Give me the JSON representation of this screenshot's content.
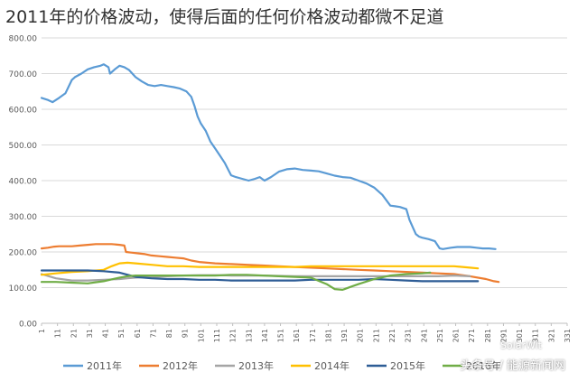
{
  "title": "2011年的价格波动，使得后面的任何价格波动都微不足道",
  "watermark": "头条号 / 能源新闻网",
  "watermark2": "SolarWit",
  "chart_data": {
    "type": "line",
    "title": "2011年的价格波动，使得后面的任何价格波动都微不足道",
    "xlabel": "",
    "ylabel": "",
    "ylim": [
      0,
      800
    ],
    "xlim": [
      1,
      331
    ],
    "yticks": [
      "0.00",
      "100.00",
      "200.00",
      "300.00",
      "400.00",
      "500.00",
      "600.00",
      "700.00",
      "800.00"
    ],
    "xticks": [
      1,
      11,
      21,
      31,
      41,
      51,
      61,
      71,
      81,
      91,
      101,
      111,
      121,
      131,
      141,
      151,
      161,
      171,
      181,
      191,
      201,
      211,
      221,
      231,
      241,
      251,
      261,
      271,
      281,
      291,
      301,
      311,
      321,
      331
    ],
    "grid": true,
    "legend_position": "bottom",
    "series": [
      {
        "name": "2011年",
        "color": "#5b9bd5",
        "x": [
          1,
          5,
          8,
          12,
          16,
          20,
          22,
          26,
          30,
          34,
          38,
          40,
          43,
          44,
          47,
          50,
          53,
          56,
          60,
          64,
          68,
          72,
          76,
          80,
          84,
          88,
          92,
          95,
          97,
          99,
          101,
          104,
          107,
          110,
          113,
          116,
          120,
          123,
          127,
          131,
          135,
          138,
          141,
          145,
          150,
          155,
          160,
          165,
          170,
          175,
          180,
          185,
          190,
          195,
          200,
          205,
          210,
          215,
          220,
          223,
          226,
          230,
          232,
          234,
          236,
          238,
          240,
          244,
          248,
          251,
          253,
          258,
          262,
          266,
          270,
          274,
          278,
          282,
          286
        ],
        "y": [
          632,
          626,
          620,
          632,
          645,
          682,
          690,
          700,
          712,
          718,
          722,
          726,
          718,
          700,
          712,
          722,
          718,
          710,
          690,
          678,
          668,
          665,
          668,
          665,
          662,
          658,
          650,
          635,
          610,
          580,
          560,
          540,
          510,
          490,
          470,
          450,
          415,
          410,
          405,
          400,
          405,
          410,
          400,
          410,
          425,
          432,
          434,
          430,
          428,
          426,
          420,
          414,
          410,
          408,
          400,
          392,
          380,
          360,
          330,
          328,
          326,
          320,
          290,
          270,
          250,
          243,
          240,
          236,
          230,
          210,
          208,
          212,
          214,
          214,
          214,
          212,
          210,
          210,
          208
        ]
      },
      {
        "name": "2012年",
        "color": "#ed7d31",
        "x": [
          1,
          5,
          9,
          12,
          16,
          20,
          25,
          30,
          35,
          40,
          45,
          50,
          53,
          54,
          58,
          62,
          66,
          70,
          75,
          80,
          85,
          90,
          95,
          100,
          110,
          120,
          130,
          140,
          150,
          160,
          170,
          180,
          190,
          200,
          210,
          220,
          230,
          240,
          250,
          260,
          270,
          280,
          285,
          288
        ],
        "y": [
          210,
          212,
          215,
          216,
          216,
          216,
          218,
          220,
          222,
          222,
          222,
          220,
          218,
          200,
          198,
          196,
          194,
          190,
          188,
          186,
          184,
          182,
          176,
          172,
          168,
          166,
          164,
          162,
          160,
          158,
          156,
          154,
          152,
          150,
          148,
          146,
          144,
          142,
          140,
          138,
          132,
          124,
          118,
          116
        ]
      },
      {
        "name": "2013年",
        "color": "#a5a5a5",
        "x": [
          1,
          10,
          20,
          30,
          40,
          50,
          55,
          60,
          70,
          80,
          90,
          100,
          110,
          120,
          130,
          140,
          150,
          160,
          170,
          180,
          190,
          200,
          210,
          220,
          230,
          240,
          250,
          260,
          270
        ],
        "y": [
          138,
          126,
          120,
          120,
          122,
          124,
          126,
          128,
          130,
          132,
          134,
          135,
          135,
          134,
          134,
          134,
          133,
          132,
          132,
          132,
          132,
          132,
          132,
          132,
          132,
          132,
          132,
          134,
          132
        ]
      },
      {
        "name": "2014年",
        "color": "#ffc000",
        "x": [
          1,
          10,
          20,
          30,
          40,
          45,
          50,
          55,
          60,
          70,
          80,
          90,
          100,
          110,
          120,
          130,
          140,
          150,
          160,
          170,
          180,
          190,
          200,
          210,
          220,
          230,
          240,
          250,
          260,
          270,
          275
        ],
        "y": [
          136,
          140,
          144,
          146,
          150,
          160,
          168,
          170,
          168,
          164,
          160,
          160,
          158,
          158,
          158,
          158,
          158,
          158,
          158,
          160,
          160,
          160,
          160,
          160,
          160,
          160,
          160,
          160,
          160,
          156,
          154
        ]
      },
      {
        "name": "2015年",
        "color": "#2e5d96",
        "x": [
          1,
          10,
          20,
          30,
          40,
          50,
          60,
          70,
          80,
          90,
          100,
          110,
          120,
          130,
          140,
          150,
          160,
          170,
          180,
          190,
          200,
          210,
          220,
          230,
          240,
          250,
          260,
          270,
          275
        ],
        "y": [
          148,
          148,
          148,
          148,
          146,
          142,
          130,
          126,
          124,
          124,
          122,
          122,
          120,
          120,
          120,
          120,
          120,
          122,
          122,
          122,
          122,
          124,
          122,
          120,
          118,
          118,
          118,
          118,
          118
        ]
      },
      {
        "name": "2016年",
        "color": "#70ad47",
        "x": [
          1,
          10,
          20,
          30,
          40,
          50,
          55,
          60,
          70,
          80,
          90,
          100,
          110,
          120,
          130,
          140,
          150,
          160,
          170,
          180,
          185,
          190,
          195,
          200,
          210,
          220,
          230,
          240,
          245
        ],
        "y": [
          116,
          116,
          114,
          112,
          118,
          128,
          132,
          134,
          134,
          134,
          134,
          134,
          134,
          136,
          136,
          134,
          132,
          130,
          128,
          110,
          96,
          94,
          102,
          110,
          124,
          134,
          138,
          140,
          142
        ]
      }
    ]
  }
}
